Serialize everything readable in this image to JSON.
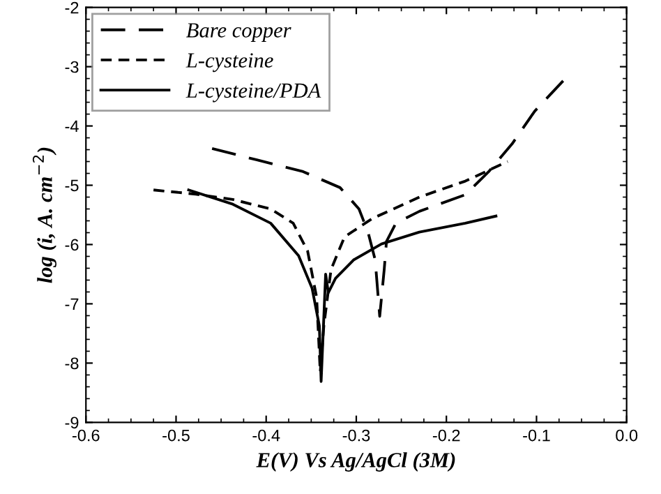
{
  "chart_data": {
    "type": "line",
    "xlabel": "E(V) Vs Ag/AgCl (3M)",
    "ylabel": "log (i, A. cm$^{−2}$)",
    "xlim": [
      -0.6,
      0.0
    ],
    "xticks": [
      -0.6,
      -0.5,
      -0.4,
      -0.3,
      -0.2,
      -0.1,
      {
        "value": 0.0,
        "label": "0.0"
      }
    ],
    "ylim": [
      -9,
      -2
    ],
    "yticks": [
      -9,
      -8,
      -7,
      -6,
      -5,
      -4,
      -3,
      -2
    ],
    "legend": "top left",
    "grid": false,
    "series": [
      {
        "name": "Bare copper",
        "color": "#000000",
        "line_style": "dashed",
        "x": [
          -0.46,
          -0.411,
          -0.359,
          -0.318,
          -0.297,
          -0.287,
          -0.279,
          -0.274,
          -0.269,
          -0.2665,
          -0.256,
          -0.23,
          -0.179,
          -0.153,
          -0.127,
          -0.102,
          -0.068
        ],
        "values": [
          -4.38,
          -4.57,
          -4.77,
          -5.04,
          -5.4,
          -5.79,
          -6.26,
          -7.21,
          -6.42,
          -5.95,
          -5.64,
          -5.44,
          -5.16,
          -4.77,
          -4.3,
          -3.75,
          -3.2
        ]
      },
      {
        "name": "L-cysteine",
        "color": "#000000",
        "line_style": "dashed",
        "x": [
          -0.525,
          -0.478,
          -0.437,
          -0.395,
          -0.37,
          -0.354,
          -0.344,
          -0.34,
          -0.336,
          -0.328,
          -0.313,
          -0.282,
          -0.23,
          -0.179,
          -0.132
        ],
        "values": [
          -5.08,
          -5.15,
          -5.24,
          -5.4,
          -5.64,
          -6.11,
          -6.89,
          -8.15,
          -7.37,
          -6.42,
          -5.87,
          -5.56,
          -5.2,
          -4.93,
          -4.6
        ]
      },
      {
        "name": "L-cysteine/PDA",
        "color": "#000000",
        "line_style": "solid",
        "x": [
          -0.486,
          -0.437,
          -0.395,
          -0.364,
          -0.349,
          -0.341,
          -0.339,
          -0.334,
          -0.331,
          -0.323,
          -0.303,
          -0.272,
          -0.23,
          -0.179,
          -0.145
        ],
        "values": [
          -5.08,
          -5.32,
          -5.64,
          -6.19,
          -6.74,
          -7.37,
          -8.31,
          -6.5,
          -6.81,
          -6.57,
          -6.26,
          -5.99,
          -5.79,
          -5.64,
          -5.52
        ]
      }
    ]
  }
}
